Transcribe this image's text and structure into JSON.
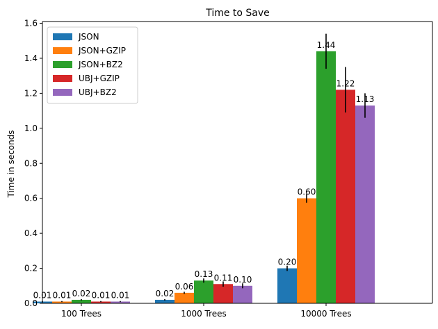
{
  "chart_data": {
    "type": "bar",
    "title": "Time to Save",
    "xlabel": "",
    "ylabel": "Time in seconds",
    "categories": [
      "100 Trees",
      "1000 Trees",
      "10000 Trees"
    ],
    "ylim": [
      0,
      1.61
    ],
    "yticks": [
      "0.0",
      "0.2",
      "0.4",
      "0.6",
      "0.8",
      "1.0",
      "1.2",
      "1.4",
      "1.6"
    ],
    "ytick_values": [
      0,
      0.2,
      0.4,
      0.6,
      0.8,
      1.0,
      1.2,
      1.4,
      1.6
    ],
    "legend_position": "top-left",
    "grid": false,
    "series": [
      {
        "name": "JSON",
        "color": "#1f77b4",
        "values": [
          0.01,
          0.02,
          0.2
        ],
        "labels": [
          "0.01",
          "0.02",
          "0.20"
        ],
        "err": [
          0.003,
          0.004,
          0.015
        ]
      },
      {
        "name": "JSON+GZIP",
        "color": "#ff7f0e",
        "values": [
          0.01,
          0.06,
          0.6
        ],
        "labels": [
          "0.01",
          "0.06",
          "0.60"
        ],
        "err": [
          0.003,
          0.006,
          0.025
        ]
      },
      {
        "name": "JSON+BZ2",
        "color": "#2ca02c",
        "values": [
          0.02,
          0.13,
          1.44
        ],
        "labels": [
          "0.02",
          "0.13",
          "1.44"
        ],
        "err": [
          0.004,
          0.012,
          0.1
        ]
      },
      {
        "name": "UBJ+GZIP",
        "color": "#d62728",
        "values": [
          0.01,
          0.11,
          1.22
        ],
        "labels": [
          "0.01",
          "0.11",
          "1.22"
        ],
        "err": [
          0.003,
          0.015,
          0.13
        ]
      },
      {
        "name": "UBJ+BZ2",
        "color": "#9467bd",
        "values": [
          0.01,
          0.1,
          1.13
        ],
        "labels": [
          "0.01",
          "0.10",
          "1.13"
        ],
        "err": [
          0.003,
          0.014,
          0.07
        ]
      }
    ]
  }
}
